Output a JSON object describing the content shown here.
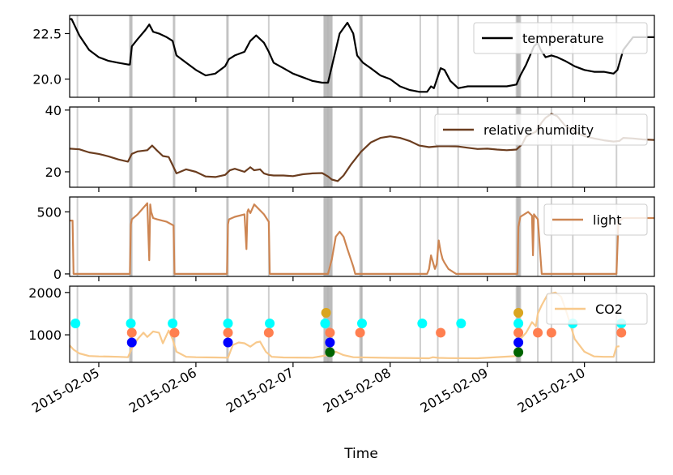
{
  "chart_data": {
    "type": "line",
    "xlabel": "Time",
    "x_date_ticks": [
      "2015-02-05",
      "2015-02-06",
      "2015-02-07",
      "2015-02-08",
      "2015-02-09",
      "2015-02-10"
    ],
    "x_range_days": [
      -0.3,
      5.72
    ],
    "event_lines_days": [
      -0.22,
      0.32,
      0.33,
      0.34,
      0.77,
      0.78,
      1.32,
      1.33,
      1.75,
      2.32,
      2.33,
      2.34,
      2.35,
      2.36,
      2.37,
      2.38,
      2.39,
      2.4,
      2.69,
      2.7,
      2.71,
      3.31,
      3.49,
      3.7,
      4.3,
      4.31,
      4.32,
      4.33,
      4.34,
      4.52,
      4.66,
      4.88,
      5.33
    ],
    "panels": [
      {
        "series": "temperature",
        "color": "#000000",
        "ylim": [
          19.0,
          23.5
        ],
        "yticks": [
          "20.0",
          "22.5"
        ],
        "ytick_values": [
          20.0,
          22.5
        ],
        "legend": "temperature",
        "x": [
          -0.3,
          -0.28,
          -0.2,
          -0.1,
          0.0,
          0.1,
          0.2,
          0.3,
          0.32,
          0.34,
          0.4,
          0.48,
          0.52,
          0.56,
          0.62,
          0.7,
          0.76,
          0.8,
          0.9,
          1.0,
          1.1,
          1.2,
          1.3,
          1.34,
          1.4,
          1.5,
          1.56,
          1.62,
          1.7,
          1.75,
          1.8,
          1.9,
          2.0,
          2.1,
          2.2,
          2.3,
          2.36,
          2.4,
          2.48,
          2.56,
          2.62,
          2.66,
          2.72,
          2.8,
          2.9,
          3.0,
          3.1,
          3.2,
          3.3,
          3.38,
          3.42,
          3.45,
          3.52,
          3.56,
          3.62,
          3.7,
          3.8,
          3.9,
          4.0,
          4.1,
          4.2,
          4.3,
          4.34,
          4.4,
          4.48,
          4.52,
          4.55,
          4.6,
          4.66,
          4.72,
          4.8,
          4.9,
          5.0,
          5.1,
          5.2,
          5.3,
          5.34,
          5.4,
          5.5,
          5.6,
          5.72
        ],
        "values": [
          23.3,
          23.3,
          22.4,
          21.6,
          21.2,
          21.0,
          20.9,
          20.8,
          20.8,
          21.8,
          22.2,
          22.7,
          23.0,
          22.6,
          22.5,
          22.3,
          22.1,
          21.3,
          20.9,
          20.5,
          20.2,
          20.3,
          20.7,
          21.1,
          21.3,
          21.5,
          22.1,
          22.4,
          22.0,
          21.5,
          20.9,
          20.6,
          20.3,
          20.1,
          19.9,
          19.8,
          19.8,
          20.7,
          22.5,
          23.1,
          22.5,
          21.3,
          20.9,
          20.6,
          20.2,
          20.0,
          19.6,
          19.4,
          19.3,
          19.3,
          19.6,
          19.5,
          20.6,
          20.5,
          19.9,
          19.5,
          19.6,
          19.6,
          19.6,
          19.6,
          19.6,
          19.7,
          20.2,
          20.8,
          21.8,
          22.0,
          21.6,
          21.2,
          21.3,
          21.2,
          21.0,
          20.7,
          20.5,
          20.4,
          20.4,
          20.3,
          20.5,
          21.6,
          22.3,
          22.3,
          22.3
        ]
      },
      {
        "series": "relative humidity",
        "color": "#6b3d1f",
        "ylim": [
          15,
          41
        ],
        "yticks": [
          "20",
          "40"
        ],
        "ytick_values": [
          20,
          40
        ],
        "legend": "relative humidity",
        "x": [
          -0.3,
          -0.2,
          -0.1,
          0.0,
          0.1,
          0.2,
          0.3,
          0.34,
          0.4,
          0.5,
          0.55,
          0.6,
          0.66,
          0.72,
          0.76,
          0.8,
          0.9,
          1.0,
          1.1,
          1.2,
          1.3,
          1.35,
          1.4,
          1.5,
          1.56,
          1.6,
          1.66,
          1.7,
          1.75,
          1.8,
          1.9,
          2.0,
          2.1,
          2.2,
          2.3,
          2.36,
          2.4,
          2.46,
          2.52,
          2.6,
          2.7,
          2.8,
          2.9,
          3.0,
          3.1,
          3.2,
          3.3,
          3.4,
          3.5,
          3.6,
          3.7,
          3.8,
          3.9,
          4.0,
          4.1,
          4.2,
          4.3,
          4.36,
          4.4,
          4.5,
          4.56,
          4.6,
          4.66,
          4.72,
          4.8,
          4.9,
          5.0,
          5.1,
          5.2,
          5.3,
          5.36,
          5.4,
          5.5,
          5.6,
          5.72
        ],
        "values": [
          27.5,
          27.3,
          26.3,
          25.8,
          25.0,
          24.0,
          23.3,
          25.8,
          26.6,
          27.0,
          28.5,
          26.9,
          25.1,
          24.8,
          22.2,
          19.5,
          20.8,
          20.0,
          18.5,
          18.3,
          19.0,
          20.5,
          21.0,
          20.0,
          21.5,
          20.5,
          20.8,
          19.5,
          19.0,
          18.8,
          18.8,
          18.6,
          19.2,
          19.5,
          19.6,
          18.5,
          17.5,
          17.0,
          18.8,
          22.5,
          26.5,
          29.5,
          31.0,
          31.5,
          31.0,
          30.0,
          28.5,
          28.0,
          28.3,
          28.3,
          28.2,
          27.8,
          27.4,
          27.5,
          27.2,
          27.0,
          27.2,
          29.0,
          31.5,
          33.0,
          36.0,
          37.5,
          38.8,
          38.0,
          35.0,
          33.0,
          31.6,
          30.8,
          30.2,
          29.8,
          30.0,
          31.0,
          30.8,
          30.5,
          30.3
        ]
      },
      {
        "series": "light",
        "color": "#cd8552",
        "ylim": [
          -20,
          620
        ],
        "yticks": [
          "0",
          "500"
        ],
        "ytick_values": [
          0,
          500
        ],
        "legend": "light",
        "x": [
          -0.3,
          -0.27,
          -0.26,
          0.32,
          0.33,
          0.34,
          0.4,
          0.5,
          0.52,
          0.53,
          0.54,
          0.56,
          0.6,
          0.7,
          0.77,
          0.78,
          1.32,
          1.33,
          1.34,
          1.4,
          1.5,
          1.52,
          1.53,
          1.54,
          1.56,
          1.6,
          1.7,
          1.75,
          1.76,
          2.36,
          2.4,
          2.44,
          2.48,
          2.52,
          2.56,
          2.62,
          2.64,
          3.38,
          3.4,
          3.42,
          3.46,
          3.48,
          3.5,
          3.52,
          3.54,
          3.56,
          3.6,
          3.66,
          3.68,
          4.31,
          4.32,
          4.34,
          4.42,
          4.46,
          4.47,
          4.48,
          4.52,
          4.56,
          4.6,
          4.64,
          4.65,
          5.33,
          5.35,
          5.4,
          5.5,
          5.6,
          5.72
        ],
        "values": [
          430,
          430,
          0,
          0,
          400,
          440,
          480,
          570,
          110,
          560,
          500,
          450,
          440,
          420,
          390,
          0,
          0,
          400,
          440,
          460,
          480,
          200,
          500,
          520,
          490,
          560,
          480,
          420,
          0,
          0,
          120,
          300,
          340,
          300,
          200,
          60,
          0,
          0,
          40,
          150,
          40,
          80,
          270,
          180,
          120,
          90,
          40,
          10,
          0,
          0,
          380,
          460,
          500,
          470,
          150,
          480,
          440,
          0,
          0,
          0,
          0,
          0,
          420,
          450,
          450,
          450,
          450
        ]
      },
      {
        "series": "CO2",
        "color": "#f8c98c",
        "ylim": [
          350,
          2150
        ],
        "yticks": [
          "1000",
          "2000"
        ],
        "ytick_values": [
          1000,
          2000
        ],
        "legend": "CO2",
        "x": [
          -0.3,
          -0.26,
          -0.2,
          -0.1,
          0.0,
          0.1,
          0.2,
          0.3,
          0.34,
          0.4,
          0.46,
          0.5,
          0.56,
          0.62,
          0.66,
          0.72,
          0.76,
          0.8,
          0.9,
          1.0,
          1.2,
          1.33,
          1.38,
          1.44,
          1.5,
          1.56,
          1.62,
          1.66,
          1.72,
          1.78,
          1.9,
          2.2,
          2.36,
          2.44,
          2.52,
          2.62,
          3.0,
          3.4,
          3.44,
          3.5,
          3.6,
          3.9,
          4.31,
          4.34,
          4.4,
          4.46,
          4.5,
          4.52,
          4.56,
          4.62,
          4.7,
          4.76,
          4.82,
          4.9,
          5.0,
          5.1,
          5.2,
          5.3,
          5.33,
          5.36
        ],
        "values": [
          750,
          650,
          560,
          500,
          490,
          485,
          480,
          470,
          680,
          900,
          1050,
          950,
          1080,
          1050,
          800,
          1100,
          900,
          600,
          480,
          470,
          465,
          460,
          760,
          820,
          800,
          720,
          820,
          840,
          600,
          480,
          465,
          460,
          520,
          600,
          520,
          470,
          455,
          445,
          470,
          455,
          450,
          445,
          500,
          900,
          1050,
          1300,
          1200,
          1500,
          1700,
          1950,
          2000,
          1900,
          1500,
          900,
          600,
          490,
          480,
          480,
          720,
          730
        ]
      }
    ],
    "markers": [
      {
        "color": "#00ffff",
        "value": 1270,
        "x": [
          -0.24,
          0.33,
          0.76,
          1.33,
          1.76,
          2.33,
          2.71,
          3.33,
          3.73,
          4.32,
          4.88,
          5.38
        ]
      },
      {
        "color": "#ff7f50",
        "value": 1050,
        "x": [
          0.34,
          0.78,
          1.33,
          1.75,
          2.38,
          2.69,
          3.52,
          4.32,
          4.52,
          4.66,
          5.38
        ]
      },
      {
        "color": "#0000ff",
        "value": 820,
        "x": [
          0.34,
          1.33,
          2.38,
          4.32
        ]
      },
      {
        "color": "#daa520",
        "value": 1520,
        "x": [
          2.34,
          4.32
        ]
      },
      {
        "color": "#006400",
        "value": 590,
        "x": [
          2.38,
          4.32
        ]
      }
    ]
  }
}
